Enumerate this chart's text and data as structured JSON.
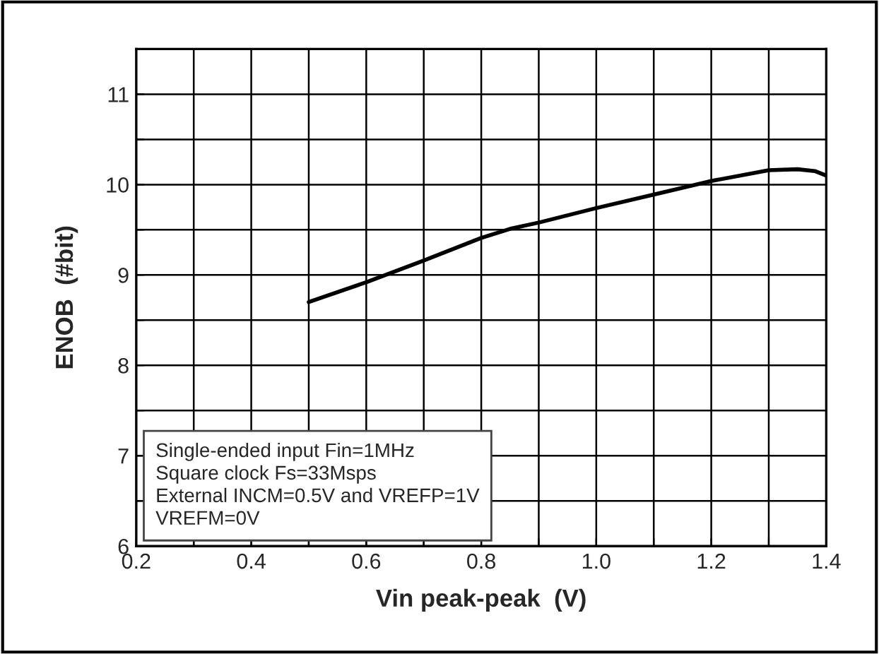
{
  "chart_data": {
    "type": "line",
    "xlabel": "Vin peak-peak  (V)",
    "ylabel": "ENOB  (#bit)",
    "x": [
      0.5,
      0.6,
      0.7,
      0.8,
      0.85,
      0.9,
      1.0,
      1.1,
      1.2,
      1.3,
      1.35,
      1.38,
      1.4
    ],
    "series": [
      {
        "color": "#000000",
        "values": [
          8.7,
          8.92,
          9.16,
          9.41,
          9.51,
          9.58,
          9.74,
          9.89,
          10.04,
          10.16,
          10.17,
          10.15,
          10.1
        ]
      }
    ],
    "xlim": [
      0.2,
      1.4
    ],
    "xticks": [
      {
        "value": 0.2,
        "label": "0.2"
      },
      {
        "value": 0.3,
        "label": null
      },
      {
        "value": 0.4,
        "label": "0.4"
      },
      {
        "value": 0.5,
        "label": null
      },
      {
        "value": 0.6,
        "label": "0.6"
      },
      {
        "value": 0.7,
        "label": null
      },
      {
        "value": 0.8,
        "label": "0.8"
      },
      {
        "value": 0.9,
        "label": null
      },
      {
        "value": 1.0,
        "label": "1.0"
      },
      {
        "value": 1.1,
        "label": null
      },
      {
        "value": 1.2,
        "label": "1.2"
      },
      {
        "value": 1.3,
        "label": null
      },
      {
        "value": 1.4,
        "label": "1.4"
      }
    ],
    "ylim": [
      6,
      11.5
    ],
    "yticks": [
      6,
      {
        "value": 6.5,
        "label": null
      },
      7,
      {
        "value": 7.5,
        "label": null
      },
      8,
      {
        "value": 8.5,
        "label": null
      },
      9,
      {
        "value": 9.5,
        "label": null
      },
      10,
      {
        "value": 10.5,
        "label": null
      },
      11,
      {
        "value": 11.5,
        "label": null
      }
    ],
    "grid": true,
    "marker": "none",
    "line_style": "solid",
    "legend": false,
    "annotations": [
      "Single-ended input Fin=1MHz\nSquare clock Fs=33Msps\nExternal INCM=0.5V and VREFP=1V\nVREFM=0V"
    ]
  }
}
